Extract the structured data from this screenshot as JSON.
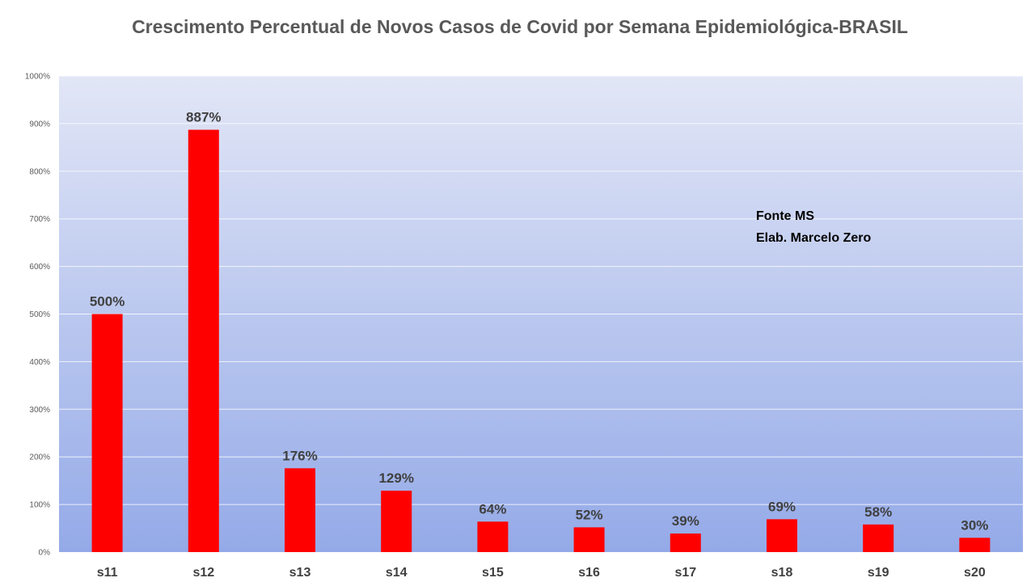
{
  "chart_data": {
    "type": "bar",
    "title": "Crescimento Percentual de Novos Casos de Covid  por Semana Epidemiológica-BRASIL",
    "xlabel": "",
    "ylabel": "",
    "categories": [
      "s11",
      "s12",
      "s13",
      "s14",
      "s15",
      "s16",
      "s17",
      "s18",
      "s19",
      "s20"
    ],
    "values": [
      500,
      887,
      176,
      129,
      64,
      52,
      39,
      69,
      58,
      30
    ],
    "data_labels": [
      "500%",
      "887%",
      "176%",
      "129%",
      "64%",
      "52%",
      "39%",
      "69%",
      "58%",
      "30%"
    ],
    "ylim": [
      0,
      1000
    ],
    "yticks": [
      0,
      100,
      200,
      300,
      400,
      500,
      600,
      700,
      800,
      900,
      1000
    ],
    "ytick_labels": [
      "0%",
      "100%",
      "200%",
      "300%",
      "400%",
      "500%",
      "600%",
      "700%",
      "800%",
      "900%",
      "1000%"
    ],
    "grid": true,
    "legend": "none",
    "annotations": [
      "Fonte MS",
      "Elab. Marcelo Zero"
    ]
  },
  "colors": {
    "bar": "#ff0000",
    "plot_gradient_top": "#e2e6f6",
    "plot_gradient_bottom": "#94aae8",
    "gridline": "#ffffff",
    "title": "#595959",
    "label": "#404040"
  }
}
